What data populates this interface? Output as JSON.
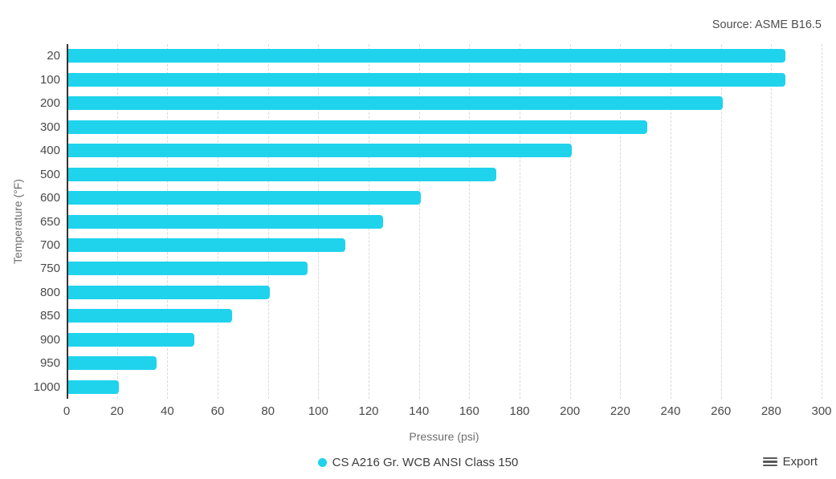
{
  "source_label": "Source: ASME B16.5",
  "chart_data": {
    "type": "bar",
    "orientation": "horizontal",
    "title": "",
    "categories": [
      "20",
      "100",
      "200",
      "300",
      "400",
      "500",
      "600",
      "650",
      "700",
      "750",
      "800",
      "850",
      "900",
      "950",
      "1000"
    ],
    "series": [
      {
        "name": "CS A216 Gr. WCB ANSI Class 150",
        "values": [
          285,
          285,
          260,
          230,
          200,
          170,
          140,
          125,
          110,
          95,
          80,
          65,
          50,
          35,
          20
        ],
        "color": "#1fd3ec"
      }
    ],
    "xlabel": "Pressure (psi)",
    "ylabel": "Temperature (°F)",
    "xlim": [
      0,
      300
    ],
    "x_ticks": [
      "0",
      "20",
      "40",
      "60",
      "80",
      "100",
      "120",
      "140",
      "160",
      "180",
      "200",
      "220",
      "240",
      "260",
      "280",
      "300"
    ],
    "grid": "vertical dashed gridlines",
    "legend_position": "bottom-center"
  },
  "legend": {
    "items": [
      {
        "label": "CS A216 Gr. WCB ANSI Class 150",
        "marker_color": "#1fd3ec"
      }
    ]
  },
  "toolbar": {
    "export_label": "Export"
  },
  "colors": {
    "bar": "#1fd3ec",
    "gridline": "#d9d9d9",
    "axis_line": "#333333",
    "tick_label": "#4a4a4a",
    "axis_title": "#6d6d6d",
    "source_text": "#4f4f4f",
    "background": "#ffffff"
  }
}
